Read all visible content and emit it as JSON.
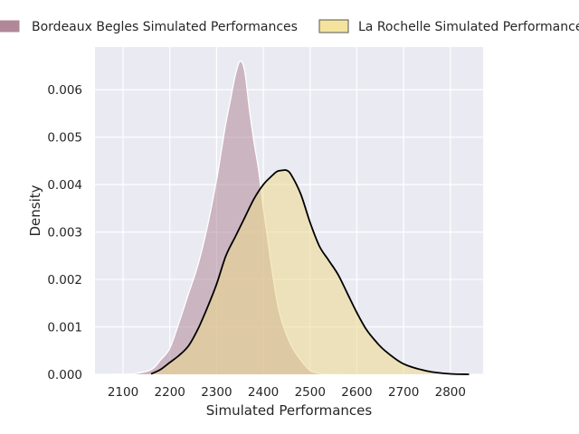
{
  "chart_data": {
    "type": "area",
    "xlabel": "Simulated Performances",
    "ylabel": "Density",
    "xlim": [
      2040,
      2870
    ],
    "ylim": [
      0,
      0.0069
    ],
    "x_ticks": [
      2100,
      2200,
      2300,
      2400,
      2500,
      2600,
      2700,
      2800
    ],
    "y_ticks": [
      0.0,
      0.001,
      0.002,
      0.003,
      0.004,
      0.005,
      0.006
    ],
    "y_tick_labels": [
      "0.000",
      "0.001",
      "0.002",
      "0.003",
      "0.004",
      "0.005",
      "0.006"
    ],
    "grid": true,
    "legend_position": "top",
    "series": [
      {
        "name": "Bordeaux Begles Simulated Performances",
        "fill_color": "#b08898",
        "fill_opacity": 0.55,
        "line_color": "#ffffff",
        "x": [
          2070,
          2120,
          2160,
          2180,
          2200,
          2220,
          2240,
          2260,
          2280,
          2300,
          2310,
          2320,
          2330,
          2340,
          2350,
          2360,
          2370,
          2380,
          2390,
          2400,
          2410,
          2420,
          2430,
          2440,
          2460,
          2480,
          2500,
          2520,
          2540,
          2560,
          2580
        ],
        "y": [
          0.0,
          1e-05,
          0.0001,
          0.0003,
          0.00055,
          0.0011,
          0.0017,
          0.0023,
          0.0031,
          0.0041,
          0.0047,
          0.0053,
          0.0058,
          0.0063,
          0.0066,
          0.0064,
          0.0056,
          0.0049,
          0.0043,
          0.0035,
          0.0028,
          0.0021,
          0.0015,
          0.0011,
          0.0006,
          0.0003,
          8e-05,
          2e-05,
          5e-06,
          1e-06,
          0.0
        ]
      },
      {
        "name": "La Rochelle Simulated Performance",
        "fill_color": "#ecd98c",
        "fill_opacity": 0.55,
        "line_color": "#000000",
        "x": [
          2160,
          2180,
          2200,
          2220,
          2240,
          2260,
          2280,
          2300,
          2320,
          2340,
          2360,
          2380,
          2400,
          2420,
          2430,
          2440,
          2450,
          2460,
          2480,
          2500,
          2520,
          2540,
          2560,
          2580,
          2600,
          2620,
          2640,
          2660,
          2700,
          2750,
          2800,
          2840
        ],
        "y": [
          1e-05,
          0.0001,
          0.00025,
          0.0004,
          0.0006,
          0.00095,
          0.0014,
          0.0019,
          0.0025,
          0.0029,
          0.0033,
          0.0037,
          0.004,
          0.0042,
          0.00428,
          0.0043,
          0.0043,
          0.0042,
          0.0038,
          0.0032,
          0.0027,
          0.0024,
          0.0021,
          0.0017,
          0.0013,
          0.00095,
          0.0007,
          0.0005,
          0.00022,
          7e-05,
          1e-05,
          0.0
        ]
      }
    ]
  }
}
